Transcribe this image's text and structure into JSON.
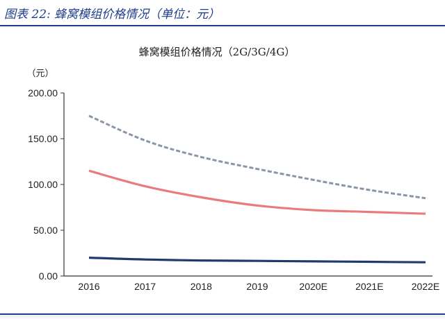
{
  "figure": {
    "caption": "图表 22:  蜂窝模组价格情况（单位：元）"
  },
  "chart_data": {
    "type": "line",
    "title": "蜂窝模组价格情况（2G/3G/4G）",
    "ylabel": "（元）",
    "xlabel": "",
    "categories": [
      "2016",
      "2017",
      "2018",
      "2019",
      "2020E",
      "2021E",
      "2022E"
    ],
    "ylim": [
      0,
      200
    ],
    "yticks": [
      0,
      50,
      100,
      150,
      200
    ],
    "ytick_labels": [
      "0.00",
      "50.00",
      "100.00",
      "150.00",
      "200.00"
    ],
    "grid": false,
    "legend": "none",
    "series": [
      {
        "values": [
          175,
          148,
          130,
          117,
          105,
          94,
          85
        ],
        "color": "#8a95a8",
        "style": "dashed"
      },
      {
        "values": [
          115,
          98,
          86,
          77,
          72,
          70,
          68
        ],
        "color": "#e87c7c",
        "style": "solid"
      },
      {
        "values": [
          20,
          18,
          17,
          16.5,
          16,
          15.5,
          15
        ],
        "color": "#1f3a6b",
        "style": "solid"
      }
    ]
  }
}
